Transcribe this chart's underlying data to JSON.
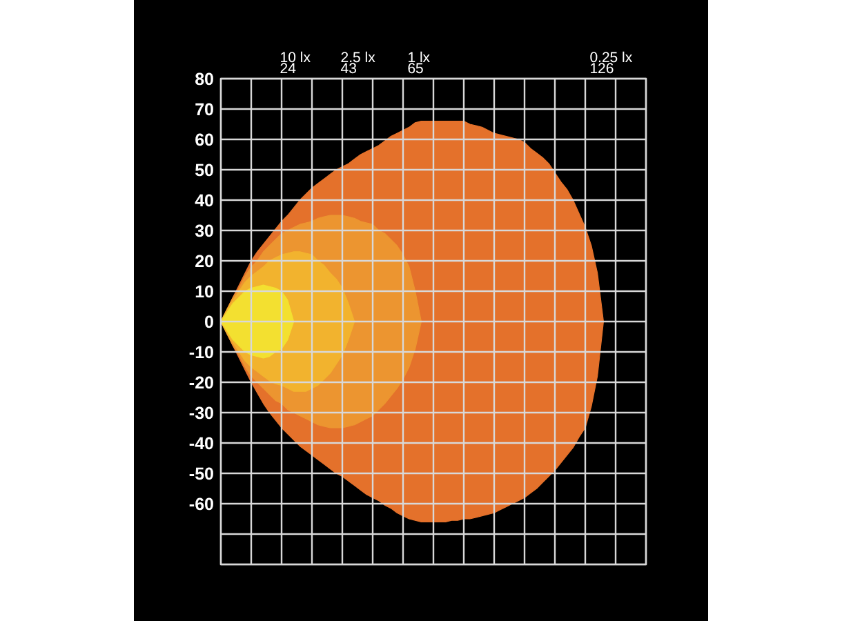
{
  "chart_data": {
    "type": "area",
    "ylim": [
      -80,
      80
    ],
    "categories": [
      null,
      null,
      null,
      null,
      null,
      null,
      null,
      null,
      null,
      null,
      null,
      null,
      null,
      null,
      null,
      null,
      null,
      null,
      null,
      null,
      null,
      null,
      null,
      null,
      null,
      null,
      null,
      null,
      null,
      null,
      null,
      null,
      null,
      null,
      null,
      null,
      null,
      null,
      null,
      null,
      null,
      null,
      null,
      null,
      null,
      null,
      null,
      null,
      null,
      null,
      null,
      null,
      null,
      null,
      null,
      null,
      null,
      null,
      null,
      null,
      null,
      null,
      null,
      null
    ],
    "yticks": [
      80,
      70,
      60,
      50,
      40,
      30,
      20,
      10,
      0,
      -10,
      -20,
      -30,
      -40,
      -50,
      -60,
      {
        "value": -70,
        "label": null
      },
      {
        "value": -80,
        "label": null
      }
    ],
    "tick_labels": "y",
    "grid": true,
    "series": [
      {
        "name": "0.25 lx",
        "color": "#e4712b",
        "values": [
          0,
          4,
          8,
          12,
          16,
          20,
          23,
          25.5,
          28,
          30.5,
          33,
          35,
          37.5,
          40,
          42,
          44,
          45.5,
          47,
          48.5,
          50,
          51,
          52,
          53.5,
          55,
          56,
          57,
          58,
          59.5,
          61,
          62,
          63,
          64,
          65.5,
          66,
          66,
          66,
          66,
          66,
          66,
          66,
          66,
          65,
          64.5,
          64,
          63,
          62,
          61.5,
          61,
          60.5,
          60,
          59,
          57,
          55.5,
          54,
          52,
          49,
          46,
          43.5,
          40,
          35.5,
          31,
          25,
          16,
          0
        ]
      },
      {
        "color": "#e4712b",
        "values": [
          0,
          -4,
          -8,
          -12,
          -16,
          -20,
          -23.5,
          -27,
          -30,
          -32.5,
          -35,
          -37,
          -39,
          -41,
          -42.5,
          -44,
          -45.5,
          -47,
          -48.5,
          -50,
          -51,
          -52.5,
          -54,
          -55.5,
          -57,
          -58,
          -59,
          -60.5,
          -61.5,
          -63,
          -64,
          -65,
          -65.5,
          -66,
          -66,
          -66,
          -66,
          -66,
          -65.5,
          -65.5,
          -65,
          -65,
          -64.5,
          -64,
          -63.5,
          -63,
          -62,
          -61,
          -60,
          -59,
          -58,
          -56.5,
          -55,
          -53,
          -51,
          -49,
          -46.5,
          -44,
          -41.5,
          -38,
          -35,
          -28,
          -18,
          0
        ]
      },
      {
        "name": "1 lx",
        "color": "#ec9530",
        "values": [
          0,
          4,
          8,
          11,
          15,
          18,
          20,
          23,
          25,
          27,
          29,
          30,
          31,
          32,
          32.5,
          33,
          34,
          34.5,
          35,
          35,
          35,
          34.5,
          34,
          33,
          32.5,
          32,
          30,
          29,
          27,
          25,
          22,
          18,
          10,
          0,
          null,
          null,
          null,
          null,
          null,
          null,
          null,
          null,
          null,
          null,
          null,
          null,
          null,
          null,
          null,
          null,
          null,
          null,
          null,
          null,
          null,
          null,
          null,
          null,
          null,
          null,
          null,
          null,
          null,
          null
        ]
      },
      {
        "color": "#ec9530",
        "values": [
          0,
          -4,
          -8,
          -11,
          -15,
          -18,
          -20,
          -22,
          -24,
          -26,
          -27,
          -29,
          -30,
          -31,
          -32,
          -33,
          -34,
          -34.5,
          -35,
          -35,
          -35,
          -34.5,
          -34,
          -33,
          -32,
          -31,
          -29,
          -27,
          -24.5,
          -22,
          -19,
          -15,
          -9,
          0,
          null,
          null,
          null,
          null,
          null,
          null,
          null,
          null,
          null,
          null,
          null,
          null,
          null,
          null,
          null,
          null,
          null,
          null,
          null,
          null,
          null,
          null,
          null,
          null,
          null,
          null,
          null,
          null,
          null,
          null
        ]
      },
      {
        "name": "2.5 lx",
        "color": "#f2b32e",
        "values": [
          0,
          4,
          7,
          10,
          13,
          15,
          16.5,
          18,
          20,
          21,
          22,
          22.5,
          23,
          23,
          22.5,
          22,
          20,
          18.5,
          16,
          14,
          11,
          6,
          0,
          null,
          null,
          null,
          null,
          null,
          null,
          null,
          null,
          null,
          null,
          null,
          null,
          null,
          null,
          null,
          null,
          null,
          null,
          null,
          null,
          null,
          null,
          null,
          null,
          null,
          null,
          null,
          null,
          null,
          null,
          null,
          null,
          null,
          null,
          null,
          null,
          null,
          null,
          null,
          null,
          null
        ]
      },
      {
        "color": "#f2b32e",
        "values": [
          0,
          -4,
          -7,
          -10,
          -13,
          -15,
          -16.5,
          -18,
          -19.5,
          -20.5,
          -21,
          -22,
          -23,
          -23,
          -23,
          -22,
          -21,
          -19,
          -17,
          -14,
          -11,
          -6,
          0,
          null,
          null,
          null,
          null,
          null,
          null,
          null,
          null,
          null,
          null,
          null,
          null,
          null,
          null,
          null,
          null,
          null,
          null,
          null,
          null,
          null,
          null,
          null,
          null,
          null,
          null,
          null,
          null,
          null,
          null,
          null,
          null,
          null,
          null,
          null,
          null,
          null,
          null,
          null,
          null,
          null
        ]
      },
      {
        "name": "10 lx",
        "color": "#f3e030",
        "values": [
          0,
          3,
          6,
          8,
          10,
          11,
          11.5,
          12,
          11.5,
          11,
          10,
          7,
          0,
          null,
          null,
          null,
          null,
          null,
          null,
          null,
          null,
          null,
          null,
          null,
          null,
          null,
          null,
          null,
          null,
          null,
          null,
          null,
          null,
          null,
          null,
          null,
          null,
          null,
          null,
          null,
          null,
          null,
          null,
          null,
          null,
          null,
          null,
          null,
          null,
          null,
          null,
          null,
          null,
          null,
          null,
          null,
          null,
          null,
          null,
          null,
          null,
          null,
          null,
          null
        ]
      },
      {
        "color": "#f3e030",
        "values": [
          0,
          -3,
          -6,
          -8,
          -10,
          -11,
          -11.5,
          -12,
          -11.5,
          -10,
          -9,
          -6,
          0,
          null,
          null,
          null,
          null,
          null,
          null,
          null,
          null,
          null,
          null,
          null,
          null,
          null,
          null,
          null,
          null,
          null,
          null,
          null,
          null,
          null,
          null,
          null,
          null,
          null,
          null,
          null,
          null,
          null,
          null,
          null,
          null,
          null,
          null,
          null,
          null,
          null,
          null,
          null,
          null,
          null,
          null,
          null,
          null,
          null,
          null,
          null,
          null,
          null,
          null,
          null
        ]
      }
    ],
    "annotations": [
      "126",
      "65",
      "43",
      "24"
    ]
  }
}
